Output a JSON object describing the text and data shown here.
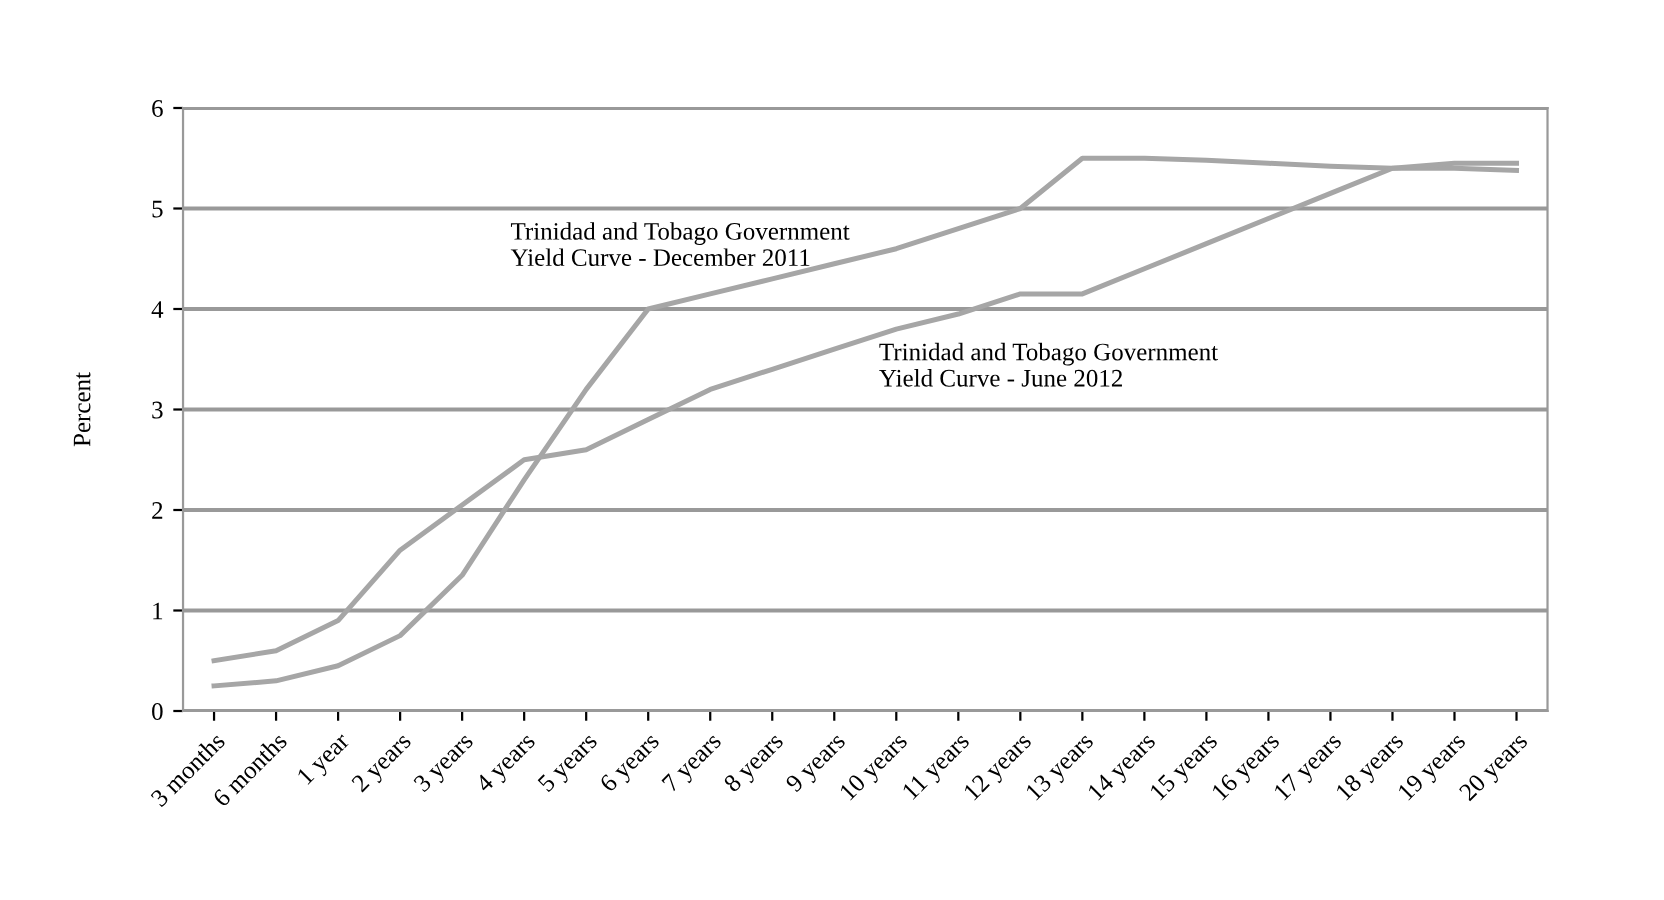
{
  "chart_data": {
    "type": "line",
    "ylabel": "Percent",
    "categories": [
      "3 months",
      "6 months",
      "1 year",
      "2 years",
      "3 years",
      "4 years",
      "5 years",
      "6 years",
      "7 years",
      "8 years",
      "9 years",
      "10 years",
      "11 years",
      "12 years",
      "13 years",
      "14 years",
      "15 years",
      "16 years",
      "17 years",
      "18 years",
      "19 years",
      "20 years"
    ],
    "series": [
      {
        "name": "Trinidad and Tobago Government Yield Curve - December 2011",
        "color": "#a6a6a6",
        "values": [
          0.25,
          0.3,
          0.45,
          0.75,
          1.35,
          2.3,
          3.2,
          4.0,
          4.15,
          4.3,
          4.45,
          4.6,
          4.8,
          5.0,
          5.5,
          5.5,
          5.48,
          5.45,
          5.42,
          5.4,
          5.4,
          5.38
        ]
      },
      {
        "name": "Trinidad and Tobago Government Yield Curve - June 2012",
        "color": "#a6a6a6",
        "values": [
          0.5,
          0.6,
          0.9,
          1.6,
          2.05,
          2.5,
          2.6,
          2.9,
          3.2,
          3.4,
          3.6,
          3.8,
          3.95,
          4.15,
          4.15,
          4.4,
          4.65,
          4.9,
          5.15,
          5.4,
          5.45,
          5.45
        ]
      }
    ],
    "ylim": [
      0,
      6
    ],
    "yticks": [
      0,
      1,
      2,
      3,
      4,
      5,
      6
    ],
    "grid": "y",
    "legend": false,
    "marker": "none",
    "line_style": "solid"
  }
}
